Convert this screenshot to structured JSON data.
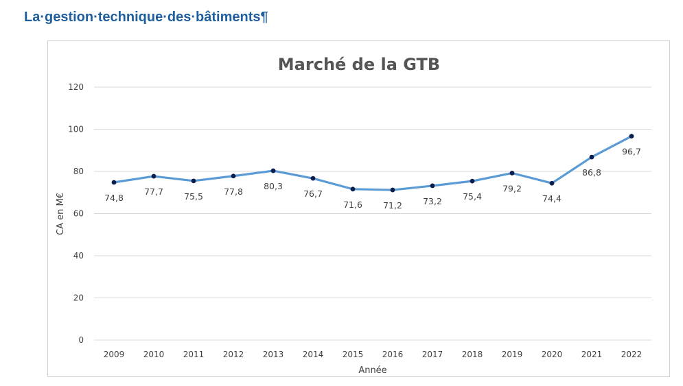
{
  "page": {
    "heading": "La·gestion·technique·des·bâtiments¶"
  },
  "colors": {
    "heading": "#1f5f9e",
    "line": "#5b9bd5",
    "marker": "#0b1f4f",
    "grid": "#d9d9d9"
  },
  "chart_data": {
    "type": "line",
    "title": "Marché de la GTB",
    "xlabel": "Année",
    "ylabel": "CA en M€",
    "ylim": [
      0,
      120
    ],
    "yticks": [
      0,
      20,
      40,
      60,
      80,
      100,
      120
    ],
    "grid": true,
    "legend": "none",
    "categories": [
      "2009",
      "2010",
      "2011",
      "2012",
      "2013",
      "2014",
      "2015",
      "2016",
      "2017",
      "2018",
      "2019",
      "2020",
      "2021",
      "2022"
    ],
    "series": [
      {
        "values": [
          74.8,
          77.7,
          75.5,
          77.8,
          80.3,
          76.7,
          71.6,
          71.2,
          73.2,
          75.4,
          79.2,
          74.4,
          86.8,
          96.7
        ],
        "labels": [
          "74,8",
          "77,7",
          "75,5",
          "77,8",
          "80,3",
          "76,7",
          "71,6",
          "71,2",
          "73,2",
          "75,4",
          "79,2",
          "74,4",
          "86,8",
          "96,7"
        ]
      }
    ]
  }
}
